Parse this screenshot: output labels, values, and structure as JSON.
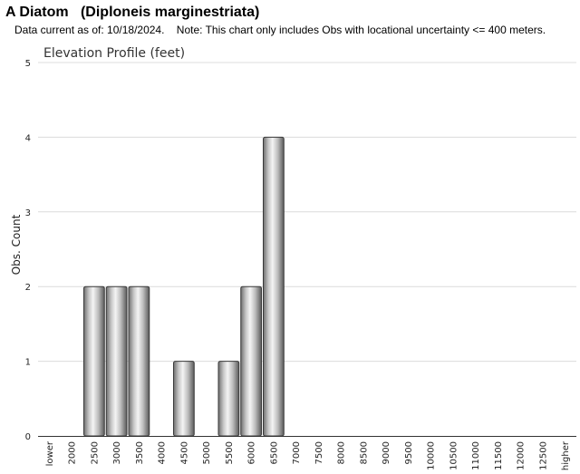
{
  "header": {
    "title": "A Diatom   (Diploneis marginestriata)",
    "note": "Data current as of: 10/18/2024.    Note: This chart only includes Obs with locational uncertainty <= 400 meters."
  },
  "chart_data": {
    "type": "bar",
    "title": "Elevation Profile (feet)",
    "xlabel": "",
    "ylabel": "Obs. Count",
    "categories": [
      "lower",
      "2000",
      "2500",
      "3000",
      "3500",
      "4000",
      "4500",
      "5000",
      "5500",
      "6000",
      "6500",
      "7000",
      "7500",
      "8000",
      "8500",
      "9000",
      "9500",
      "10000",
      "10500",
      "11000",
      "11500",
      "12000",
      "12500",
      "higher"
    ],
    "values": [
      0,
      0,
      2,
      2,
      2,
      0,
      1,
      0,
      1,
      2,
      4,
      0,
      0,
      0,
      0,
      0,
      0,
      0,
      0,
      0,
      0,
      0,
      0,
      0
    ],
    "ylim": [
      0,
      5
    ],
    "yticks": [
      "0",
      "1",
      "2",
      "3",
      "4",
      "5"
    ],
    "grid": true,
    "legend": "none",
    "bar_color": "#b8b8b8"
  }
}
